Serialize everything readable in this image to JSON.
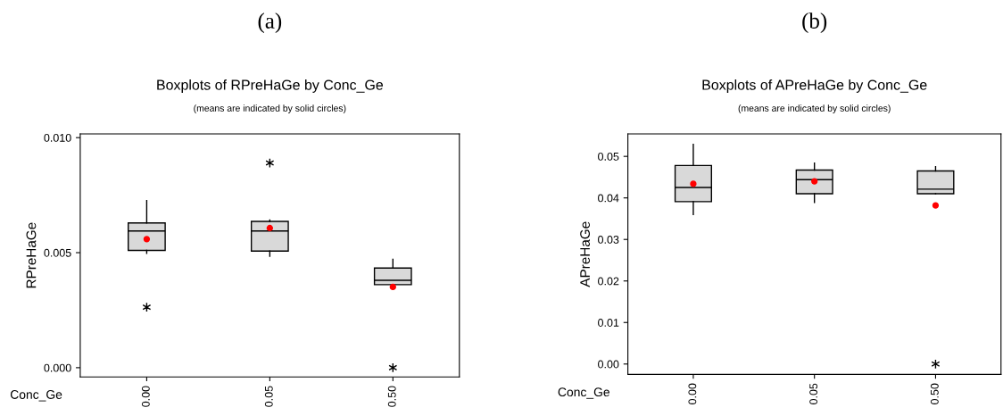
{
  "chart_data": [
    {
      "type": "box",
      "annotations": [
        "(a)"
      ],
      "title": "Boxplots of RPreHaGe by Conc_Ge",
      "subtitle": "(means are indicated by solid circles)",
      "xlabel": "Conc_Ge",
      "ylabel": "RPreHaGe",
      "categories": [
        "0.00",
        "0.05",
        "0.50"
      ],
      "boxes": [
        {
          "low": 0.00497,
          "q1": 0.0051,
          "median": 0.00594,
          "q3": 0.00629,
          "high": 0.00726,
          "mean": 0.00559,
          "outliers": [
            0.00263
          ]
        },
        {
          "low": 0.00484,
          "q1": 0.00507,
          "median": 0.00594,
          "q3": 0.00636,
          "high": 0.00642,
          "mean": 0.00607,
          "outliers": [
            0.0089
          ]
        },
        {
          "low": 0.00361,
          "q1": 0.00361,
          "median": 0.0038,
          "q3": 0.00433,
          "high": 0.00471,
          "mean": 0.00351,
          "outliers": [
            0.0
          ]
        }
      ],
      "color": "#d9d9d9",
      "ylim": [
        -0.0004,
        0.01016
      ],
      "yticks": [
        {
          "value": 0.0,
          "label": "0.000"
        },
        {
          "value": 0.005,
          "label": "0.005"
        },
        {
          "value": 0.01,
          "label": "0.010"
        }
      ]
    },
    {
      "type": "box",
      "annotations": [
        "(b)"
      ],
      "title": "Boxplots of APreHaGe by Conc_Ge",
      "subtitle": "(means are indicated by solid circles)",
      "xlabel": "Conc_Ge",
      "ylabel": "APreHaGe",
      "categories": [
        "0.00",
        "0.05",
        "0.50"
      ],
      "boxes": [
        {
          "low": 0.036,
          "q1": 0.0391,
          "median": 0.0425,
          "q3": 0.0478,
          "high": 0.0529,
          "mean": 0.0434
        },
        {
          "low": 0.0389,
          "q1": 0.041,
          "median": 0.0444,
          "q3": 0.0467,
          "high": 0.0484,
          "mean": 0.044
        },
        {
          "low": 0.041,
          "q1": 0.041,
          "median": 0.0421,
          "q3": 0.0465,
          "high": 0.0475,
          "mean": 0.0382,
          "outliers": [
            0.0
          ]
        }
      ],
      "color": "#d9d9d9",
      "ylim": [
        -0.0025,
        0.0554
      ],
      "yticks": [
        {
          "value": 0.0,
          "label": "0.00"
        },
        {
          "value": 0.01,
          "label": "0.01"
        },
        {
          "value": 0.02,
          "label": "0.02"
        },
        {
          "value": 0.03,
          "label": "0.03"
        },
        {
          "value": 0.04,
          "label": "0.04"
        },
        {
          "value": 0.05,
          "label": "0.05"
        }
      ]
    }
  ]
}
